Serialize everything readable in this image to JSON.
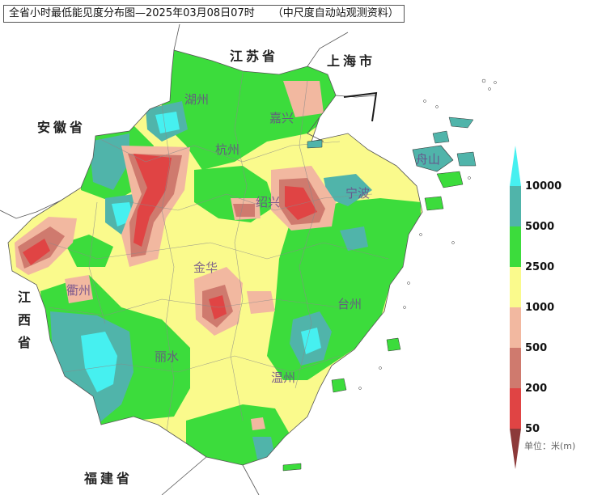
{
  "title": {
    "main": "全省小时最低能见度分布图—2025年03月08日07时",
    "source": "（中尺度自动站观测资料）"
  },
  "neighbors": {
    "jiangsu": "江苏省",
    "shanghai": "上海市",
    "anhui": "安徽省",
    "jiangxi": [
      "江",
      "西",
      "省"
    ],
    "fujian": "福建省"
  },
  "cities": {
    "huzhou": "湖州",
    "jiaxing": "嘉兴",
    "hangzhou": "杭州",
    "shaoxing": "绍兴",
    "ningbo": "宁波",
    "zhoushan": "舟山",
    "quzhou": "衢州",
    "jinhua": "金华",
    "taizhou": "台州",
    "lishui": "丽水",
    "wenzhou": "温州"
  },
  "legend": {
    "unit": "单位：米(m)",
    "levels": [
      "50",
      "200",
      "500",
      "1000",
      "2500",
      "5000",
      "10000"
    ],
    "colors": {
      "lt50": "#8c3a3a",
      "r50_200": "#e04444",
      "r200_500": "#cf7a6e",
      "r500_1000": "#f2b8a0",
      "r1000_2500": "#fafa8c",
      "r2500_5000": "#3cdc3c",
      "r5000_10000": "#50b4aa",
      "gt10000": "#46f0f0"
    }
  },
  "colors": {
    "background": "#ffffff",
    "boundary": "#888888",
    "sea": "#ffffff"
  }
}
